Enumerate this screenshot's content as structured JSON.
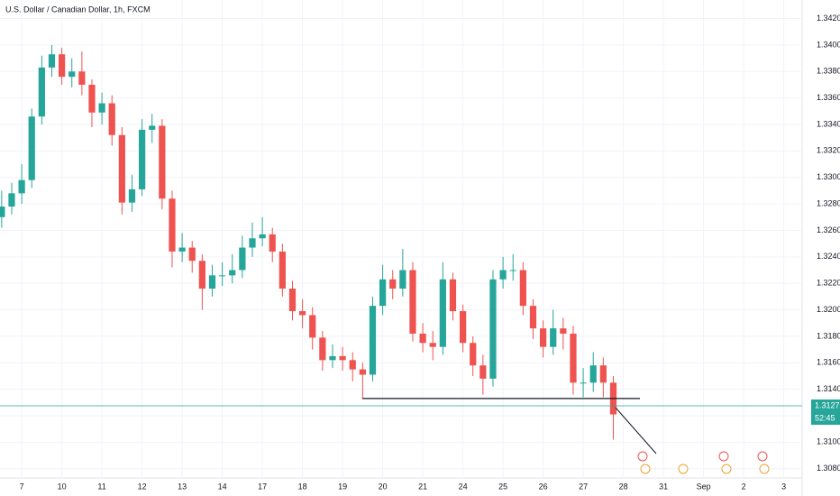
{
  "chart_data": {
    "type": "candlestick",
    "title": "U.S. Dollar / Canadian Dollar, 1h, FXCM",
    "x": [
      -12,
      -6,
      0,
      6,
      12,
      18,
      24,
      30,
      36,
      42,
      48,
      54,
      60,
      66,
      72,
      78,
      84,
      90,
      96,
      102,
      108,
      114,
      120,
      126,
      132,
      138,
      144,
      150,
      156,
      162,
      168,
      174,
      180,
      186,
      192,
      198,
      204,
      210,
      216,
      222,
      228,
      234,
      240,
      246,
      252,
      258,
      264,
      270,
      276,
      282,
      288,
      294,
      300,
      306,
      312,
      318,
      324,
      330,
      336,
      342,
      348,
      354
    ],
    "open": [
      1.327,
      1.3278,
      1.3288,
      1.3298,
      1.3346,
      1.3383,
      1.3393,
      1.3376,
      1.338,
      1.337,
      1.3349,
      1.3356,
      1.3332,
      1.3281,
      1.3291,
      1.3336,
      1.3339,
      1.3284,
      1.3244,
      1.3247,
      1.3237,
      1.3216,
      1.3226,
      1.3226,
      1.323,
      1.3247,
      1.3254,
      1.3257,
      1.3244,
      1.3216,
      1.3199,
      1.3196,
      1.3179,
      1.3162,
      1.3165,
      1.3162,
      1.3155,
      1.3151,
      1.3203,
      1.3223,
      1.3216,
      1.323,
      1.3182,
      1.3175,
      1.3172,
      1.3223,
      1.3199,
      1.3175,
      1.3158,
      1.3148,
      1.3223,
      1.323,
      1.323,
      1.3203,
      1.3186,
      1.3172,
      1.3186,
      1.3182,
      1.3145,
      1.3145,
      1.3158,
      1.3145
    ],
    "high": [
      1.329,
      1.3296,
      1.331,
      1.3352,
      1.3392,
      1.34,
      1.3398,
      1.339,
      1.3395,
      1.3374,
      1.3364,
      1.3362,
      1.3338,
      1.3302,
      1.3344,
      1.3348,
      1.3344,
      1.329,
      1.3258,
      1.3252,
      1.3242,
      1.3234,
      1.3236,
      1.3242,
      1.3256,
      1.3266,
      1.327,
      1.3262,
      1.325,
      1.3222,
      1.3208,
      1.3202,
      1.3184,
      1.3174,
      1.3172,
      1.3168,
      1.316,
      1.321,
      1.3234,
      1.323,
      1.3246,
      1.3236,
      1.319,
      1.3184,
      1.3236,
      1.3228,
      1.3204,
      1.318,
      1.3166,
      1.323,
      1.324,
      1.3242,
      1.3236,
      1.3208,
      1.3192,
      1.32,
      1.3194,
      1.3188,
      1.3156,
      1.3168,
      1.3164,
      1.315
    ],
    "low": [
      1.3262,
      1.3272,
      1.328,
      1.3292,
      1.334,
      1.3376,
      1.337,
      1.3368,
      1.3362,
      1.3338,
      1.334,
      1.3324,
      1.3272,
      1.3274,
      1.3286,
      1.3326,
      1.3276,
      1.3232,
      1.3236,
      1.3228,
      1.32,
      1.321,
      1.3218,
      1.322,
      1.3224,
      1.324,
      1.3248,
      1.3236,
      1.321,
      1.3192,
      1.3186,
      1.317,
      1.3154,
      1.3156,
      1.3154,
      1.3146,
      1.3133,
      1.3146,
      1.3196,
      1.3208,
      1.321,
      1.3176,
      1.3168,
      1.3162,
      1.3166,
      1.3192,
      1.3168,
      1.315,
      1.3136,
      1.3142,
      1.3216,
      1.3222,
      1.3196,
      1.3178,
      1.3164,
      1.3166,
      1.317,
      1.3136,
      1.3134,
      1.3138,
      1.3134,
      1.3102
    ],
    "close": [
      1.3278,
      1.3288,
      1.3298,
      1.3346,
      1.3383,
      1.3393,
      1.3376,
      1.338,
      1.337,
      1.3349,
      1.3356,
      1.3332,
      1.3281,
      1.3291,
      1.3336,
      1.3339,
      1.3284,
      1.3244,
      1.3247,
      1.3237,
      1.3216,
      1.3226,
      1.3226,
      1.323,
      1.3247,
      1.3254,
      1.3257,
      1.3244,
      1.3216,
      1.3199,
      1.3196,
      1.3179,
      1.3162,
      1.3165,
      1.3162,
      1.3155,
      1.3151,
      1.3203,
      1.3223,
      1.3216,
      1.323,
      1.3182,
      1.3175,
      1.3172,
      1.3223,
      1.3199,
      1.3175,
      1.3158,
      1.3148,
      1.3223,
      1.323,
      1.323,
      1.3203,
      1.3186,
      1.3172,
      1.3186,
      1.3182,
      1.3145,
      1.3145,
      1.3158,
      1.3145,
      1.3121
    ],
    "up_color": "#26a69a",
    "down_color": "#ef5350",
    "xlim": [
      -13,
      467
    ],
    "ylim": [
      1.3073,
      1.3434
    ],
    "xticks": [
      {
        "value": 0,
        "label": "7"
      },
      {
        "value": 24,
        "label": "10"
      },
      {
        "value": 48,
        "label": "11"
      },
      {
        "value": 72,
        "label": "12"
      },
      {
        "value": 96,
        "label": "13"
      },
      {
        "value": 120,
        "label": "14"
      },
      {
        "value": 144,
        "label": "17"
      },
      {
        "value": 168,
        "label": "18"
      },
      {
        "value": 192,
        "label": "19"
      },
      {
        "value": 216,
        "label": "20"
      },
      {
        "value": 240,
        "label": "21"
      },
      {
        "value": 264,
        "label": "24"
      },
      {
        "value": 288,
        "label": "25"
      },
      {
        "value": 312,
        "label": "26"
      },
      {
        "value": 336,
        "label": "27"
      },
      {
        "value": 360,
        "label": "28"
      },
      {
        "value": 384,
        "label": "31"
      },
      {
        "value": 408,
        "label": "Sep"
      },
      {
        "value": 432,
        "label": "2"
      },
      {
        "value": 456,
        "label": "3"
      }
    ],
    "yticks": [
      {
        "value": 1.308,
        "label": "1.30800"
      },
      {
        "value": 1.31,
        "label": "1.31000"
      },
      {
        "value": 1.312,
        "label": "1.31200"
      },
      {
        "value": 1.314,
        "label": "1.31400"
      },
      {
        "value": 1.316,
        "label": "1.31600"
      },
      {
        "value": 1.318,
        "label": "1.31800"
      },
      {
        "value": 1.32,
        "label": "1.32000"
      },
      {
        "value": 1.322,
        "label": "1.32200"
      },
      {
        "value": 1.324,
        "label": "1.32400"
      },
      {
        "value": 1.326,
        "label": "1.32600"
      },
      {
        "value": 1.328,
        "label": "1.32800"
      },
      {
        "value": 1.33,
        "label": "1.33000"
      },
      {
        "value": 1.332,
        "label": "1.33200"
      },
      {
        "value": 1.334,
        "label": "1.33400"
      },
      {
        "value": 1.336,
        "label": "1.33600"
      },
      {
        "value": 1.338,
        "label": "1.33800"
      },
      {
        "value": 1.34,
        "label": "1.34000"
      },
      {
        "value": 1.342,
        "label": "1.34200"
      }
    ],
    "grid": true,
    "last_price": {
      "value": 1.31275,
      "label": "1.31275"
    },
    "countdown": "52:45",
    "support_level": 1.3133
  }
}
